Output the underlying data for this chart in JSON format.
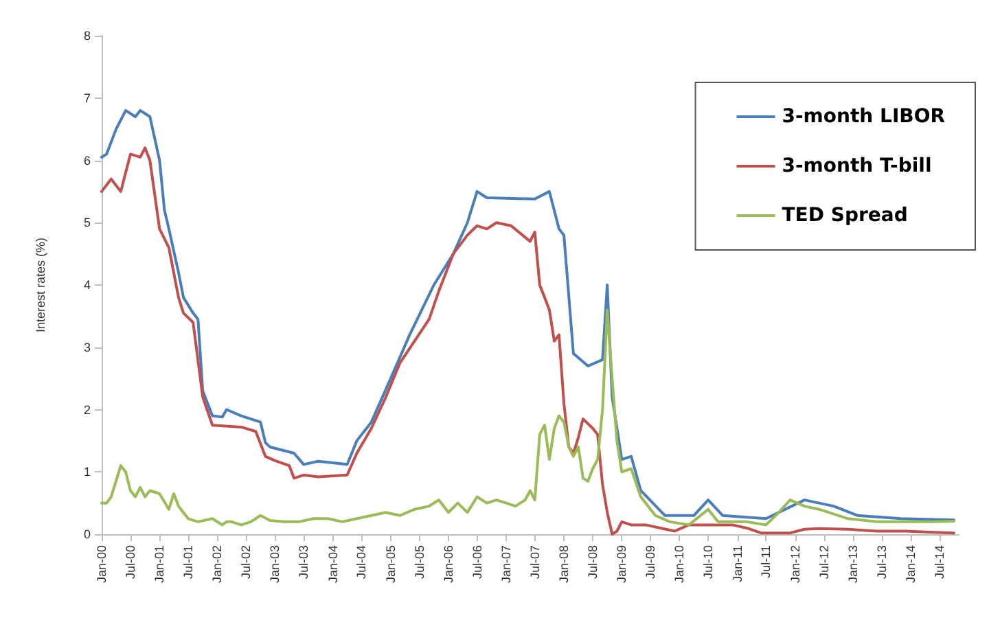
{
  "chart_data": {
    "type": "line",
    "ylabel": "Interest rates (%)",
    "ylim": [
      0,
      8
    ],
    "yticks": [
      0,
      1,
      2,
      3,
      4,
      5,
      6,
      7,
      8
    ],
    "xlim": [
      "2000-01",
      "2014-11"
    ],
    "xticks": [
      {
        "value": "2000-01",
        "label": "Jan-00"
      },
      {
        "value": "2000-07",
        "label": "Jul-00"
      },
      {
        "value": "2001-01",
        "label": "Jan-01"
      },
      {
        "value": "2001-07",
        "label": "Jul-01"
      },
      {
        "value": "2002-01",
        "label": "Jan-02"
      },
      {
        "value": "2002-07",
        "label": "Jul-02"
      },
      {
        "value": "2003-01",
        "label": "Jan-03"
      },
      {
        "value": "2003-07",
        "label": "Jul-03"
      },
      {
        "value": "2004-01",
        "label": "Jan-04"
      },
      {
        "value": "2004-07",
        "label": "Jul-04"
      },
      {
        "value": "2005-01",
        "label": "Jan-05"
      },
      {
        "value": "2005-07",
        "label": "Jul-05"
      },
      {
        "value": "2006-01",
        "label": "Jan-06"
      },
      {
        "value": "2006-07",
        "label": "Jul-06"
      },
      {
        "value": "2007-01",
        "label": "Jan-07"
      },
      {
        "value": "2007-07",
        "label": "Jul-07"
      },
      {
        "value": "2008-01",
        "label": "Jan-08"
      },
      {
        "value": "2008-07",
        "label": "Jul-08"
      },
      {
        "value": "2009-01",
        "label": "Jan-09"
      },
      {
        "value": "2009-07",
        "label": "Jul-09"
      },
      {
        "value": "2010-01",
        "label": "Jan-10"
      },
      {
        "value": "2010-07",
        "label": "Jul-10"
      },
      {
        "value": "2011-01",
        "label": "Jan-11"
      },
      {
        "value": "2011-07",
        "label": "Jul-11"
      },
      {
        "value": "2012-01",
        "label": "Jan-12"
      },
      {
        "value": "2012-07",
        "label": "Jul-12"
      },
      {
        "value": "2013-01",
        "label": "Jan-13"
      },
      {
        "value": "2013-07",
        "label": "Jul-13"
      },
      {
        "value": "2014-01",
        "label": "Jan-14"
      },
      {
        "value": "2014-07",
        "label": "Jul-14"
      }
    ],
    "grid": false,
    "legend": "top right",
    "marker": "none",
    "line_style": "solid",
    "series": [
      {
        "name": "3-month LIBOR",
        "color": "#4a7ebb",
        "x": [
          "2000-01",
          "2000-02",
          "2000-04",
          "2000-06",
          "2000-08",
          "2000-09",
          "2000-11",
          "2001-01",
          "2001-02",
          "2001-03",
          "2001-05",
          "2001-06",
          "2001-08",
          "2001-09",
          "2001-10",
          "2001-12",
          "2002-02",
          "2002-03",
          "2002-06",
          "2002-10",
          "2002-11",
          "2002-12",
          "2003-05",
          "2003-07",
          "2003-10",
          "2004-04",
          "2004-06",
          "2004-09",
          "2005-01",
          "2005-05",
          "2005-10",
          "2006-02",
          "2006-05",
          "2006-07",
          "2006-09",
          "2007-07",
          "2007-10",
          "2007-12",
          "2008-01",
          "2008-03",
          "2008-06",
          "2008-09",
          "2008-10",
          "2008-11",
          "2009-01",
          "2009-03",
          "2009-05",
          "2009-10",
          "2010-04",
          "2010-07",
          "2010-10",
          "2011-07",
          "2012-03",
          "2012-09",
          "2013-02",
          "2013-11",
          "2014-10"
        ],
        "values": [
          6.05,
          6.1,
          6.5,
          6.8,
          6.7,
          6.8,
          6.7,
          6.0,
          5.2,
          4.9,
          4.2,
          3.8,
          3.55,
          3.45,
          2.3,
          1.9,
          1.88,
          2.0,
          1.9,
          1.8,
          1.47,
          1.4,
          1.3,
          1.12,
          1.17,
          1.12,
          1.5,
          1.8,
          2.5,
          3.2,
          4.0,
          4.5,
          5.0,
          5.5,
          5.4,
          5.38,
          5.5,
          4.9,
          4.8,
          2.9,
          2.7,
          2.8,
          4.0,
          2.2,
          1.2,
          1.25,
          0.7,
          0.3,
          0.3,
          0.55,
          0.3,
          0.25,
          0.55,
          0.45,
          0.3,
          0.25,
          0.23
        ]
      },
      {
        "name": "3-month T-bill",
        "color": "#c0504d",
        "x": [
          "2000-01",
          "2000-03",
          "2000-05",
          "2000-07",
          "2000-09",
          "2000-10",
          "2000-11",
          "2001-01",
          "2001-03",
          "2001-05",
          "2001-06",
          "2001-08",
          "2001-10",
          "2001-12",
          "2002-06",
          "2002-09",
          "2002-11",
          "2003-01",
          "2003-04",
          "2003-05",
          "2003-07",
          "2003-10",
          "2004-04",
          "2004-06",
          "2004-09",
          "2004-12",
          "2005-03",
          "2005-06",
          "2005-09",
          "2005-11",
          "2006-02",
          "2006-05",
          "2006-07",
          "2006-09",
          "2006-11",
          "2007-02",
          "2007-06",
          "2007-07",
          "2007-08",
          "2007-09",
          "2007-10",
          "2007-11",
          "2007-12",
          "2008-01",
          "2008-02",
          "2008-03",
          "2008-04",
          "2008-05",
          "2008-07",
          "2008-08",
          "2008-09",
          "2008-10",
          "2008-11",
          "2008-12",
          "2009-01",
          "2009-03",
          "2009-06",
          "2009-09",
          "2009-12",
          "2010-03",
          "2010-06",
          "2010-09",
          "2010-12",
          "2011-03",
          "2011-06",
          "2011-09",
          "2011-12",
          "2012-03",
          "2012-06",
          "2012-12",
          "2013-06",
          "2013-12",
          "2014-06",
          "2014-10"
        ],
        "values": [
          5.5,
          5.7,
          5.5,
          6.1,
          6.05,
          6.2,
          6.0,
          4.9,
          4.6,
          3.8,
          3.55,
          3.4,
          2.2,
          1.75,
          1.72,
          1.65,
          1.25,
          1.18,
          1.1,
          0.9,
          0.95,
          0.92,
          0.95,
          1.3,
          1.7,
          2.2,
          2.75,
          3.1,
          3.45,
          3.9,
          4.5,
          4.8,
          4.95,
          4.9,
          5.0,
          4.95,
          4.7,
          4.85,
          4.0,
          3.8,
          3.6,
          3.1,
          3.2,
          2.1,
          1.4,
          1.3,
          1.55,
          1.85,
          1.7,
          1.6,
          0.8,
          0.35,
          0.0,
          0.05,
          0.2,
          0.15,
          0.15,
          0.1,
          0.05,
          0.15,
          0.15,
          0.15,
          0.15,
          0.1,
          0.02,
          0.02,
          0.02,
          0.08,
          0.09,
          0.08,
          0.05,
          0.05,
          0.03,
          0.02
        ]
      },
      {
        "name": "TED Spread",
        "color": "#9bbb59",
        "x": [
          "2000-01",
          "2000-02",
          "2000-03",
          "2000-05",
          "2000-06",
          "2000-07",
          "2000-08",
          "2000-09",
          "2000-10",
          "2000-11",
          "2001-01",
          "2001-03",
          "2001-04",
          "2001-05",
          "2001-07",
          "2001-09",
          "2001-12",
          "2002-02",
          "2002-03",
          "2002-04",
          "2002-06",
          "2002-08",
          "2002-10",
          "2002-12",
          "2003-03",
          "2003-06",
          "2003-09",
          "2003-12",
          "2004-03",
          "2004-06",
          "2004-09",
          "2004-12",
          "2005-03",
          "2005-06",
          "2005-09",
          "2005-11",
          "2006-01",
          "2006-03",
          "2006-05",
          "2006-07",
          "2006-09",
          "2006-11",
          "2007-01",
          "2007-03",
          "2007-05",
          "2007-06",
          "2007-07",
          "2007-08",
          "2007-09",
          "2007-10",
          "2007-11",
          "2007-12",
          "2008-01",
          "2008-02",
          "2008-03",
          "2008-04",
          "2008-05",
          "2008-06",
          "2008-07",
          "2008-08",
          "2008-09",
          "2008-10",
          "2008-11",
          "2008-12",
          "2009-01",
          "2009-03",
          "2009-05",
          "2009-08",
          "2009-11",
          "2010-03",
          "2010-07",
          "2010-09",
          "2011-03",
          "2011-07",
          "2011-09",
          "2011-12",
          "2012-03",
          "2012-06",
          "2012-12",
          "2013-06",
          "2013-12",
          "2014-06",
          "2014-10"
        ],
        "values": [
          0.5,
          0.5,
          0.6,
          1.1,
          1.0,
          0.7,
          0.6,
          0.75,
          0.6,
          0.7,
          0.65,
          0.4,
          0.65,
          0.45,
          0.25,
          0.2,
          0.25,
          0.15,
          0.2,
          0.2,
          0.15,
          0.2,
          0.3,
          0.22,
          0.2,
          0.2,
          0.25,
          0.25,
          0.2,
          0.25,
          0.3,
          0.35,
          0.3,
          0.4,
          0.45,
          0.55,
          0.35,
          0.5,
          0.35,
          0.6,
          0.5,
          0.55,
          0.5,
          0.45,
          0.55,
          0.7,
          0.55,
          1.6,
          1.75,
          1.2,
          1.7,
          1.9,
          1.8,
          1.4,
          1.25,
          1.4,
          0.9,
          0.85,
          1.05,
          1.2,
          2.0,
          3.6,
          2.5,
          1.5,
          1.0,
          1.05,
          0.6,
          0.3,
          0.2,
          0.15,
          0.4,
          0.2,
          0.2,
          0.15,
          0.3,
          0.55,
          0.45,
          0.4,
          0.25,
          0.2,
          0.2,
          0.2,
          0.21
        ]
      }
    ]
  }
}
